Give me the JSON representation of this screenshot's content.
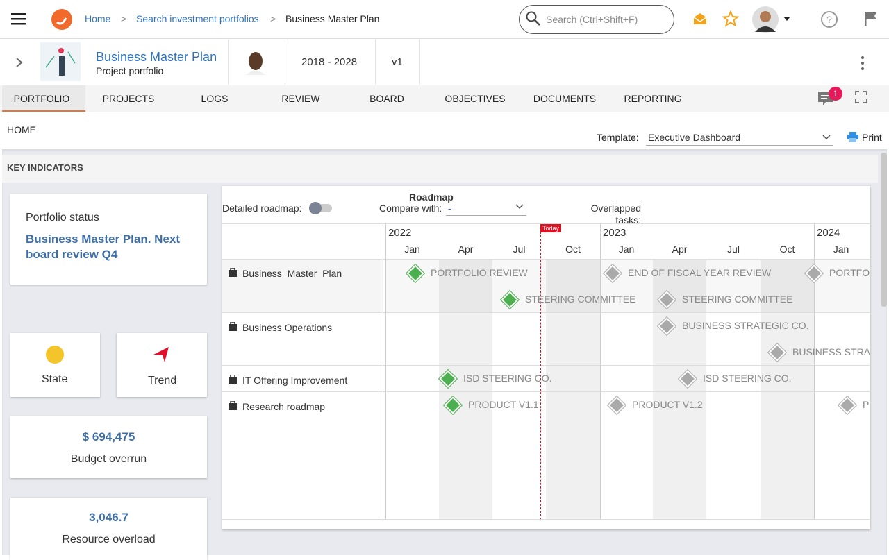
{
  "header": {
    "breadcrumb": [
      "Home",
      "Search investment portfolios",
      "Business Master Plan"
    ],
    "search_placeholder": "Search (Ctrl+Shift+F)"
  },
  "portfolio": {
    "name": "Business Master Plan",
    "subtitle": "Project portfolio",
    "period": "2018 - 2028",
    "version": "v1"
  },
  "tabs": {
    "items": [
      "PORTFOLIO",
      "PROJECTS",
      "LOGS",
      "REVIEW",
      "BOARD",
      "OBJECTIVES",
      "DOCUMENTS",
      "REPORTING"
    ],
    "notifications": "1"
  },
  "toolbar": {
    "breadcrumb": "HOME",
    "template_label": "Template:",
    "template_value": "Executive Dashboard",
    "print": "Print"
  },
  "section_title": "KEY INDICATORS",
  "indicators": {
    "status_label": "Portfolio status",
    "status_text": "Business Master Plan. Next board review Q4",
    "state": "State",
    "trend": "Trend",
    "budget_value": "$ 694,475",
    "budget_label": "Budget overrun",
    "resource_value": "3,046.7",
    "resource_label": "Resource overload"
  },
  "roadmap": {
    "title": "Roadmap",
    "detailed_label": "Detailed roadmap:",
    "compare_label": "Compare with:",
    "compare_value": "-",
    "overlapped_label": "Overlapped tasks:",
    "today": "Today",
    "years": [
      "2022",
      "2023",
      "2024"
    ],
    "months": [
      "Jan",
      "Apr",
      "Jul",
      "Oct",
      "Jan",
      "Apr",
      "Jul",
      "Oct",
      "Jan"
    ],
    "rows": [
      {
        "name": "Business  Master  Plan",
        "milestones": [
          "PORTFOLIO REVIEW",
          "END OF FISCAL YEAR REVIEW",
          "PORTFOL",
          "STEERING COMMITTEE",
          "STEERING COMMITTEE"
        ]
      },
      {
        "name": "Business Operations",
        "milestones": [
          "BUSINESS STRATEGIC CO.",
          "BUSINESS STRAT"
        ]
      },
      {
        "name": "IT Offering Improvement",
        "milestones": [
          "ISD STEERING CO.",
          "ISD STEERING CO."
        ]
      },
      {
        "name": "Research roadmap",
        "milestones": [
          "PRODUCT V1.1",
          "PRODUCT V1.2",
          "PR"
        ]
      }
    ]
  }
}
